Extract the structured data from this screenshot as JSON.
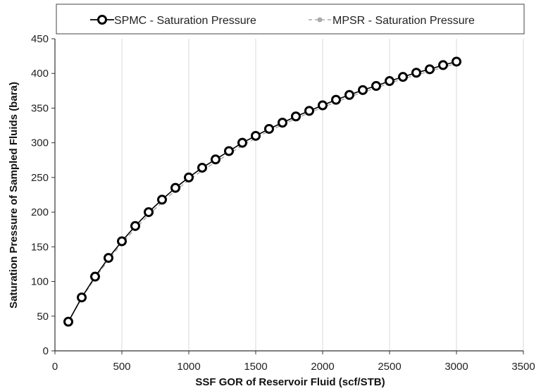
{
  "chart_data": {
    "type": "line",
    "xlabel": "SSF GOR of Reservoir Fluid (scf/STB)",
    "ylabel": "Saturation Pressure of Sampled Fluids (bara)",
    "xlim": [
      0,
      3500
    ],
    "ylim": [
      0,
      450
    ],
    "xticks": [
      "0",
      "500",
      "1000",
      "1500",
      "2000",
      "2500",
      "3000",
      "3500"
    ],
    "yticks": [
      "0",
      "50",
      "100",
      "150",
      "200",
      "250",
      "300",
      "350",
      "400",
      "450"
    ],
    "grid": "vertical",
    "legend_position": "top",
    "x": [
      100,
      200,
      300,
      400,
      500,
      600,
      700,
      800,
      900,
      1000,
      1100,
      1200,
      1300,
      1400,
      1500,
      1600,
      1700,
      1800,
      1900,
      2000,
      2100,
      2200,
      2300,
      2400,
      2500,
      2600,
      2700,
      2800,
      2900,
      3000
    ],
    "series": [
      {
        "name": "SPMC - Saturation Pressure",
        "color": "#000000",
        "marker": "open-circle",
        "values": [
          42,
          77,
          107,
          134,
          158,
          180,
          200,
          218,
          235,
          250,
          264,
          276,
          288,
          300,
          310,
          320,
          329,
          338,
          346,
          354,
          362,
          369,
          376,
          382,
          389,
          395,
          401,
          406,
          412,
          417
        ]
      },
      {
        "name": "MPSR - Saturation Pressure",
        "color": "#aaaaaa",
        "marker": "filled-circle-dashed",
        "values": [
          42,
          76,
          105,
          131,
          155,
          176,
          196,
          214,
          231,
          246,
          260,
          272,
          284,
          296,
          307,
          317,
          326,
          335,
          343,
          351,
          359,
          366,
          373,
          379,
          386,
          392,
          398,
          403,
          409,
          414
        ]
      }
    ]
  }
}
